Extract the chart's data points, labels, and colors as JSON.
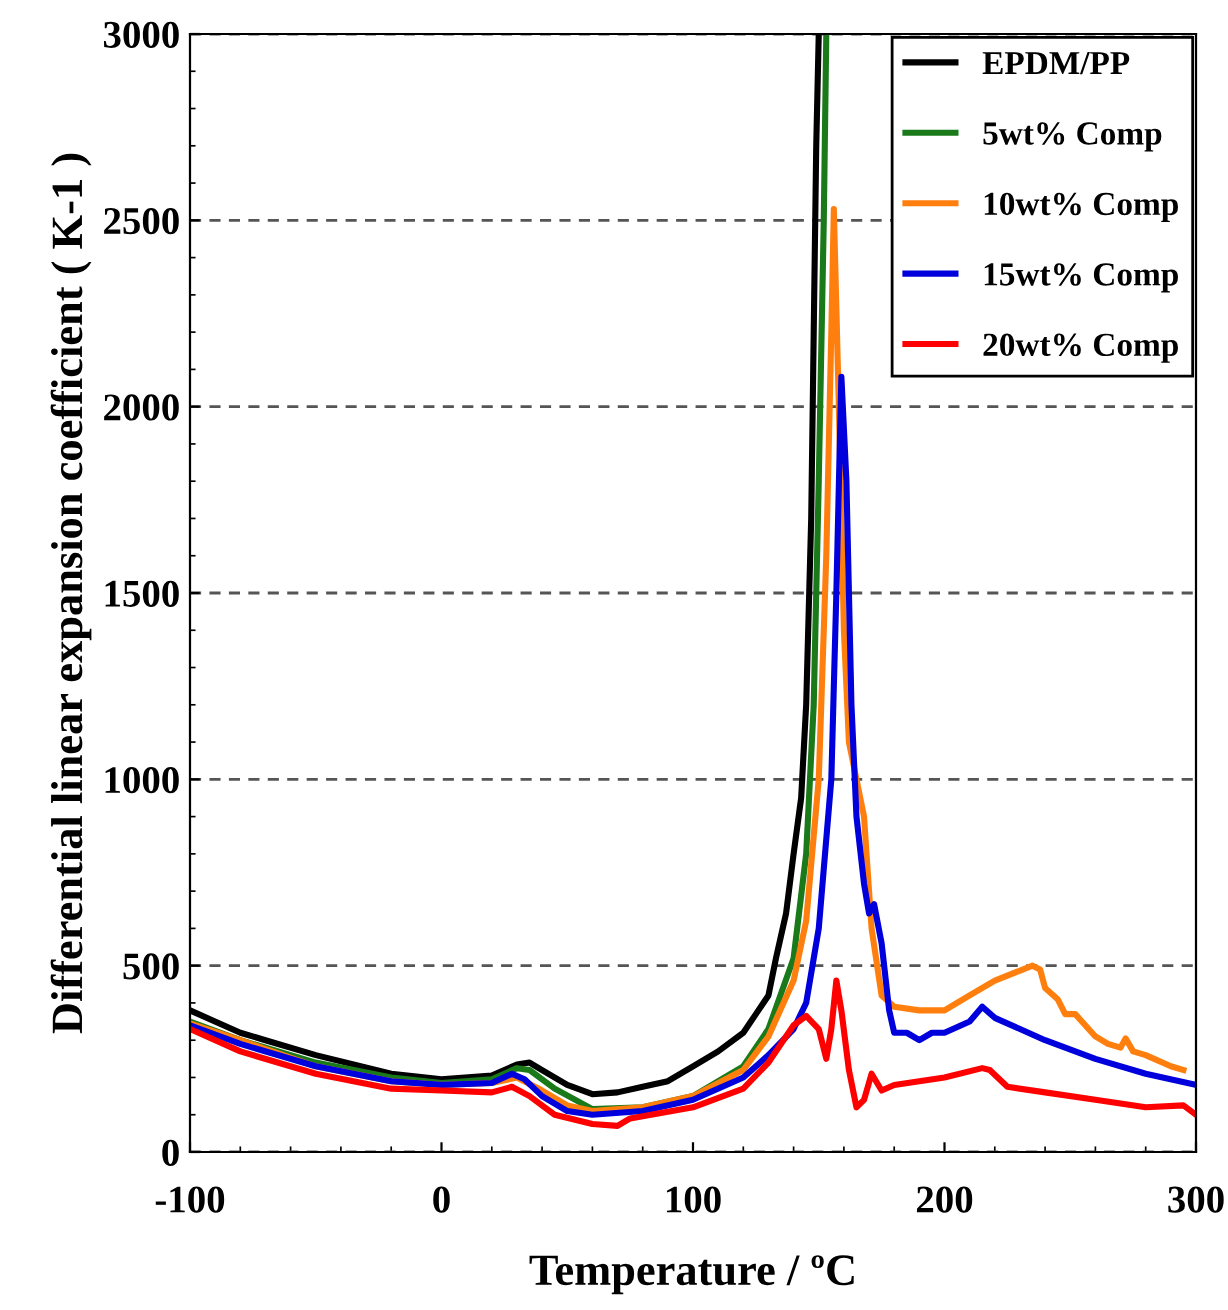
{
  "chart_data": {
    "type": "line",
    "xlabel": "Temperature / ºC",
    "ylabel": "Differential linear expansion coefficient ( K-1 )",
    "xlim": [
      -100,
      300
    ],
    "ylim": [
      0,
      3000
    ],
    "xticks": [
      -100,
      0,
      100,
      200,
      300
    ],
    "yticks": [
      0,
      500,
      1000,
      1500,
      2000,
      2500,
      3000
    ],
    "grid": "y",
    "legend": "top right",
    "marker": "none",
    "line_style": "solid",
    "series": [
      {
        "name": "EPDM/PP",
        "color": "#000000",
        "x": [
          -100,
          -80,
          -70,
          -50,
          -20,
          0,
          20,
          30,
          35,
          40,
          50,
          60,
          70,
          80,
          90,
          100,
          110,
          120,
          125,
          130,
          133,
          137,
          140,
          143,
          145,
          147,
          148,
          149,
          150
        ],
        "values": [
          380,
          320,
          300,
          260,
          210,
          195,
          205,
          235,
          240,
          220,
          180,
          155,
          160,
          175,
          190,
          230,
          270,
          320,
          370,
          420,
          520,
          640,
          800,
          950,
          1200,
          1700,
          2200,
          2700,
          3000
        ]
      },
      {
        "name": "5wt% Comp",
        "color": "#1a7a1a",
        "x": [
          -100,
          -80,
          -50,
          -20,
          0,
          20,
          30,
          35,
          45,
          60,
          80,
          100,
          120,
          130,
          140,
          145,
          148,
          150,
          152,
          153
        ],
        "values": [
          350,
          300,
          240,
          200,
          185,
          195,
          225,
          220,
          170,
          115,
          120,
          150,
          230,
          330,
          520,
          800,
          1200,
          1800,
          2500,
          3000
        ]
      },
      {
        "name": "10wt% Comp",
        "color": "#ff7f0e",
        "x": [
          -100,
          -80,
          -50,
          -20,
          0,
          20,
          30,
          40,
          50,
          60,
          80,
          100,
          120,
          130,
          140,
          145,
          150,
          153,
          155,
          156,
          158,
          160,
          162,
          165,
          168,
          171,
          175,
          180,
          190,
          200,
          210,
          220,
          235,
          238,
          240,
          245,
          248,
          252,
          260,
          265,
          270,
          272,
          275,
          280,
          290,
          295
        ],
        "values": [
          345,
          300,
          230,
          190,
          180,
          185,
          200,
          165,
          125,
          110,
          120,
          150,
          220,
          310,
          460,
          620,
          1000,
          1600,
          2200,
          2530,
          2000,
          1400,
          1100,
          1000,
          900,
          600,
          420,
          390,
          380,
          380,
          420,
          460,
          500,
          490,
          440,
          410,
          370,
          370,
          310,
          290,
          280,
          305,
          270,
          260,
          230,
          220
        ]
      },
      {
        "name": "15wt% Comp",
        "color": "#0000dd",
        "x": [
          -100,
          -80,
          -50,
          -20,
          0,
          20,
          28,
          33,
          40,
          50,
          60,
          80,
          100,
          120,
          130,
          140,
          145,
          150,
          155,
          157,
          159,
          161,
          163,
          165,
          168,
          170,
          172,
          175,
          178,
          180,
          185,
          190,
          195,
          200,
          210,
          215,
          220,
          230,
          240,
          260,
          280,
          300
        ],
        "values": [
          340,
          290,
          230,
          190,
          180,
          185,
          210,
          195,
          150,
          110,
          100,
          110,
          140,
          200,
          260,
          330,
          400,
          600,
          1000,
          1500,
          2080,
          1800,
          1200,
          900,
          720,
          640,
          665,
          560,
          380,
          320,
          320,
          300,
          320,
          320,
          350,
          390,
          360,
          330,
          300,
          250,
          210,
          180
        ]
      },
      {
        "name": "20wt% Comp",
        "color": "#ff0000",
        "x": [
          -100,
          -80,
          -50,
          -20,
          0,
          20,
          28,
          35,
          45,
          60,
          70,
          75,
          100,
          120,
          130,
          140,
          145,
          150,
          153,
          155,
          157,
          159,
          162,
          165,
          168,
          171,
          175,
          180,
          200,
          215,
          218,
          225,
          240,
          260,
          280,
          295,
          300
        ],
        "values": [
          330,
          270,
          210,
          170,
          165,
          160,
          175,
          150,
          100,
          75,
          70,
          90,
          120,
          170,
          240,
          340,
          365,
          330,
          250,
          330,
          460,
          380,
          220,
          120,
          140,
          210,
          165,
          180,
          200,
          225,
          220,
          175,
          160,
          140,
          120,
          125,
          100
        ]
      }
    ]
  }
}
